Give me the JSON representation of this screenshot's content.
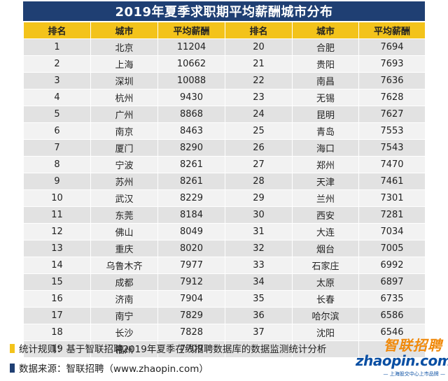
{
  "title": "2019年夏季求职期平均薪酬城市分布",
  "headers": [
    "排名",
    "城市",
    "平均薪酬",
    "排名",
    "城市",
    "平均薪酬"
  ],
  "rows": [
    [
      "1",
      "北京",
      "11204",
      "20",
      "合肥",
      "7694"
    ],
    [
      "2",
      "上海",
      "10662",
      "21",
      "贵阳",
      "7693"
    ],
    [
      "3",
      "深圳",
      "10088",
      "22",
      "南昌",
      "7636"
    ],
    [
      "4",
      "杭州",
      "9430",
      "23",
      "无锡",
      "7628"
    ],
    [
      "5",
      "广州",
      "8868",
      "24",
      "昆明",
      "7627"
    ],
    [
      "6",
      "南京",
      "8463",
      "25",
      "青岛",
      "7553"
    ],
    [
      "7",
      "厦门",
      "8290",
      "26",
      "海口",
      "7543"
    ],
    [
      "8",
      "宁波",
      "8261",
      "27",
      "郑州",
      "7470"
    ],
    [
      "9",
      "苏州",
      "8261",
      "28",
      "天津",
      "7461"
    ],
    [
      "10",
      "武汉",
      "8229",
      "29",
      "兰州",
      "7301"
    ],
    [
      "11",
      "东莞",
      "8184",
      "30",
      "西安",
      "7281"
    ],
    [
      "12",
      "佛山",
      "8049",
      "31",
      "大连",
      "7034"
    ],
    [
      "13",
      "重庆",
      "8020",
      "32",
      "烟台",
      "7005"
    ],
    [
      "14",
      "乌鲁木齐",
      "7977",
      "33",
      "石家庄",
      "6992"
    ],
    [
      "15",
      "成都",
      "7912",
      "34",
      "太原",
      "6897"
    ],
    [
      "16",
      "济南",
      "7904",
      "35",
      "长春",
      "6735"
    ],
    [
      "17",
      "南宁",
      "7829",
      "36",
      "哈尔滨",
      "6586"
    ],
    [
      "18",
      "长沙",
      "7828",
      "37",
      "沈阳",
      "6546"
    ],
    [
      "19",
      "福州",
      "7709",
      "",
      "",
      ""
    ]
  ],
  "notes": {
    "rule": "统计规则：基于智联招聘2019年夏季在线招聘数据库的数据监测统计分析",
    "source": "数据来源：智联招聘（www.zhaopin.com）"
  },
  "logo": {
    "cn": "智联招聘",
    "en": "zhaopin.com",
    "sub": "— 上海股交中心上市品牌 —"
  },
  "colors": {
    "title_bg": "#1f3f73",
    "header_bg": "#f3c31b",
    "row_odd": "#e2e2e2",
    "row_even": "#f2f2f2",
    "rule_mark": "#f3c31b",
    "source_mark": "#1f3f73"
  }
}
